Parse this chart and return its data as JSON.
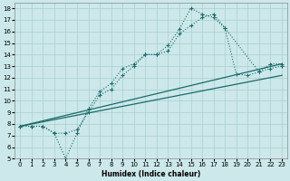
{
  "xlabel": "Humidex (Indice chaleur)",
  "bg_color": "#cce8ea",
  "grid_color": "#aacdd0",
  "line_color": "#1a6b6b",
  "xlim": [
    -0.5,
    23.5
  ],
  "ylim": [
    5,
    18.5
  ],
  "yticks": [
    5,
    6,
    7,
    8,
    9,
    10,
    11,
    12,
    13,
    14,
    15,
    16,
    17,
    18
  ],
  "xticks": [
    0,
    1,
    2,
    3,
    4,
    5,
    6,
    7,
    8,
    9,
    10,
    11,
    12,
    13,
    14,
    15,
    16,
    17,
    18,
    19,
    20,
    21,
    22,
    23
  ],
  "line1_x": [
    0,
    1,
    2,
    3,
    4,
    5,
    6,
    7,
    8,
    9,
    10,
    11,
    12,
    13,
    14,
    15,
    16,
    17,
    18,
    21,
    22,
    23
  ],
  "line1_y": [
    7.8,
    7.8,
    7.8,
    7.2,
    5.0,
    7.2,
    9.3,
    10.8,
    11.5,
    12.8,
    13.2,
    14.0,
    14.0,
    14.8,
    16.2,
    18.0,
    17.5,
    17.2,
    16.3,
    12.5,
    13.2,
    13.2
  ],
  "line2_x": [
    0,
    1,
    2,
    3,
    4,
    5,
    6,
    7,
    8,
    9,
    10,
    11,
    12,
    13,
    14,
    15,
    16,
    17,
    18,
    19,
    20,
    21,
    22,
    23
  ],
  "line2_y": [
    7.8,
    7.8,
    7.8,
    7.2,
    7.2,
    7.5,
    9.0,
    10.5,
    11.0,
    12.2,
    13.0,
    14.0,
    14.0,
    14.3,
    15.8,
    16.5,
    17.2,
    17.5,
    16.3,
    12.3,
    12.2,
    12.5,
    12.8,
    13.0
  ],
  "line3_x": [
    0,
    23
  ],
  "line3_y": [
    7.8,
    13.2
  ],
  "line4_x": [
    0,
    23
  ],
  "line4_y": [
    7.8,
    12.2
  ]
}
